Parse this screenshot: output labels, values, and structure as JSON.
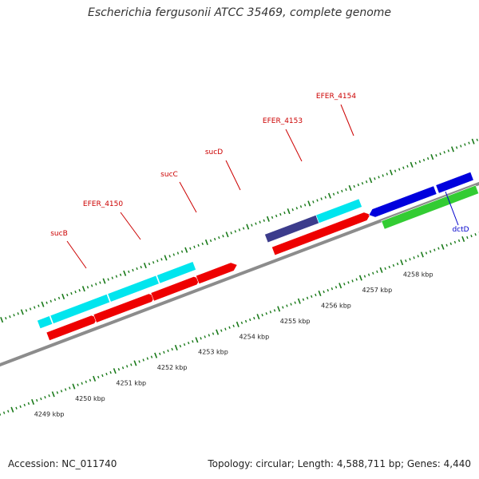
{
  "title": "Escherichia fergusonii ATCC 35469, complete genome",
  "footer": {
    "accession": "Accession: NC_011740",
    "topology": "Topology: circular; Length: 4,588,711 bp; Genes: 4,440"
  },
  "colors": {
    "backbone": "#8c8c8c",
    "tick": "#1a7a1a",
    "cyan_feature": "#00e5ee",
    "red_feature": "#ee0000",
    "navy_feature": "#3c3c8c",
    "blue_feature": "#0000dd",
    "green_feature": "#33cc33",
    "label_red": "#cc0000",
    "label_blue": "#0000cc"
  },
  "axis": {
    "unit": "kbp",
    "ticks": [
      {
        "label": "4249 kbp"
      },
      {
        "label": "4250 kbp"
      },
      {
        "label": "4251 kbp"
      },
      {
        "label": "4252 kbp"
      },
      {
        "label": "4253 kbp"
      },
      {
        "label": "4254 kbp"
      },
      {
        "label": "4255 kbp"
      },
      {
        "label": "4256 kbp"
      },
      {
        "label": "4257 kbp"
      },
      {
        "label": "4258 kbp"
      }
    ]
  },
  "features": [
    {
      "track": "cyan",
      "start": 4249.75,
      "end": 4250.05
    },
    {
      "track": "cyan",
      "start": 4250.07,
      "end": 4251.45
    },
    {
      "track": "cyan",
      "start": 4251.47,
      "end": 4252.65
    },
    {
      "track": "cyan",
      "start": 4252.67,
      "end": 4253.55
    },
    {
      "track": "cyan",
      "start": 4256.55,
      "end": 4257.6
    },
    {
      "track": "navy",
      "start": 4255.3,
      "end": 4256.55
    },
    {
      "track": "red",
      "start": 4249.85,
      "end": 4250.95
    },
    {
      "track": "red",
      "start": 4251.0,
      "end": 4252.35
    },
    {
      "track": "red",
      "start": 4252.4,
      "end": 4253.45
    },
    {
      "track": "red",
      "start": 4253.5,
      "end": 4254.35
    },
    {
      "track": "red",
      "start": 4255.35,
      "end": 4257.6
    },
    {
      "track": "blue",
      "start": 4257.8,
      "end": 4259.3
    },
    {
      "track": "blue",
      "start": 4259.35,
      "end": 4260.2
    },
    {
      "track": "green",
      "start": 4257.9,
      "end": 4260.2
    }
  ],
  "gene_labels": [
    {
      "text": "sucB",
      "color": "#cc0000"
    },
    {
      "text": "EFER_4150",
      "color": "#cc0000"
    },
    {
      "text": "sucC",
      "color": "#cc0000"
    },
    {
      "text": "sucD",
      "color": "#cc0000"
    },
    {
      "text": "EFER_4153",
      "color": "#cc0000"
    },
    {
      "text": "EFER_4154",
      "color": "#cc0000"
    },
    {
      "text": "dctD",
      "color": "#0000cc"
    }
  ]
}
